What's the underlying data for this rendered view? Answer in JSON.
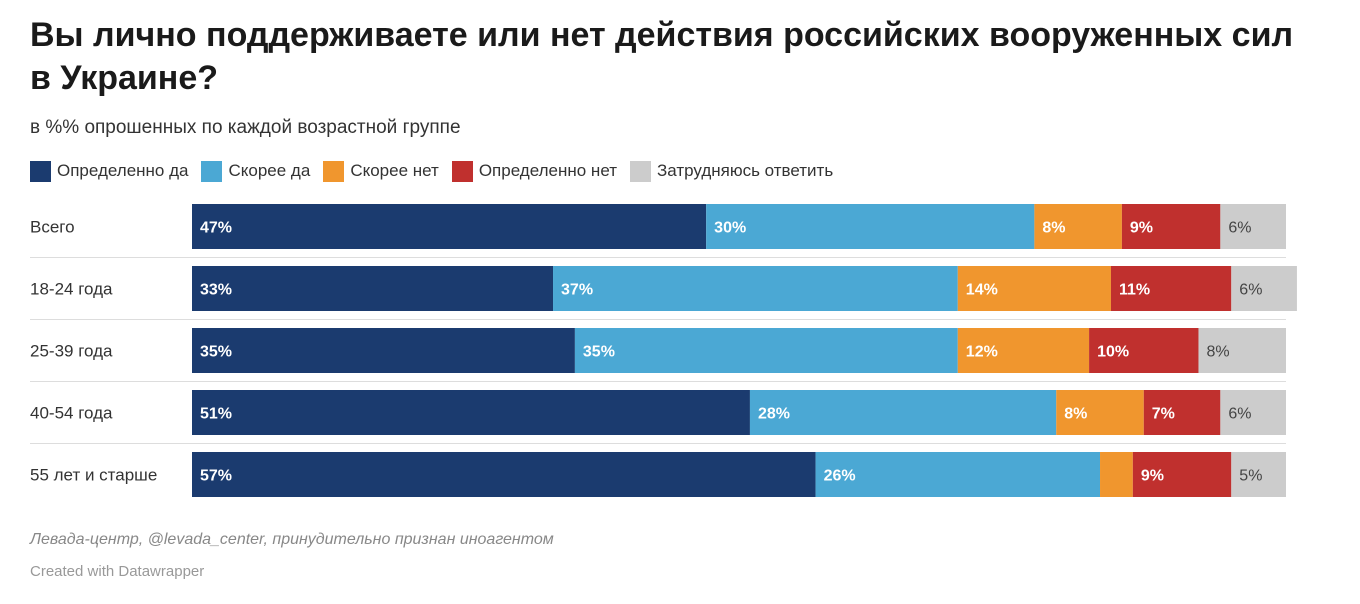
{
  "chart_data": {
    "type": "bar",
    "orientation": "horizontal",
    "stacked": true,
    "title": "Вы лично поддерживаете или нет действия российских вооруженных сил в Украине?",
    "subtitle": "в %% опрошенных по каждой возрастной группе",
    "legend_position": "top-left",
    "categories": [
      "Всего",
      "18-24 года",
      "25-39 года",
      "40-54 года",
      "55 лет и старше"
    ],
    "series": [
      {
        "name": "Определенно да",
        "color": "#1b3b6f",
        "values": [
          47,
          33,
          35,
          51,
          57
        ],
        "labels": [
          "47%",
          "33%",
          "35%",
          "51%",
          "57%"
        ]
      },
      {
        "name": "Скорее да",
        "color": "#4ba8d4",
        "values": [
          30,
          37,
          35,
          28,
          26
        ],
        "labels": [
          "30%",
          "37%",
          "35%",
          "28%",
          "26%"
        ]
      },
      {
        "name": "Скорее нет",
        "color": "#f0962e",
        "values": [
          8,
          14,
          12,
          8,
          3
        ],
        "labels": [
          "8%",
          "14%",
          "12%",
          "8%",
          ""
        ]
      },
      {
        "name": "Определенно нет",
        "color": "#c0302e",
        "values": [
          9,
          11,
          10,
          7,
          9
        ],
        "labels": [
          "9%",
          "11%",
          "10%",
          "7%",
          "9%"
        ]
      },
      {
        "name": "Затрудняюсь ответить",
        "color": "#cccccc",
        "values": [
          6,
          6,
          8,
          6,
          5
        ],
        "labels": [
          "6%",
          "6%",
          "8%",
          "6%",
          "5%"
        ]
      }
    ]
  },
  "source": "Левада-центр, @levada_center, принудительно признан иноагентом",
  "credit": "Created with Datawrapper"
}
